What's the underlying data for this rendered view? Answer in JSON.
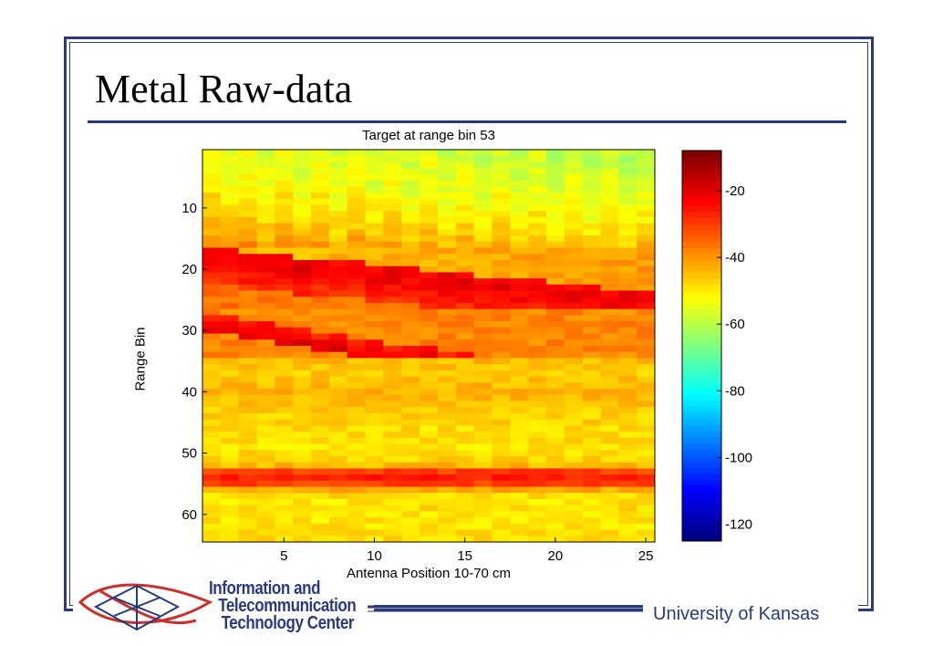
{
  "slide": {
    "title": "Metal Raw-data",
    "university": "University of Kansas",
    "logo_lines": [
      "Information and",
      "Telecommunication",
      "Technology Center"
    ],
    "frame_color": "#2b3a7a"
  },
  "chart_data": {
    "type": "heatmap",
    "title": "Target at range bin 53",
    "xlabel": "Antenna Position 10-70 cm",
    "ylabel": "Range Bin",
    "xlim": [
      0.5,
      25.5
    ],
    "ylim": [
      65,
      1
    ],
    "xticks": [
      5,
      10,
      15,
      20,
      25
    ],
    "yticks": [
      10,
      20,
      30,
      40,
      50,
      60
    ],
    "colorbar": {
      "ticks": [
        -20,
        -40,
        -60,
        -80,
        -100,
        -120
      ],
      "range": [
        -125,
        -8
      ],
      "colormap": "jet"
    },
    "n_cols": 25,
    "n_rows": 64,
    "row_profile_db": [
      -52,
      -52,
      -51,
      -51,
      -50,
      -50,
      -49,
      -48,
      -47,
      -46,
      -45,
      -44,
      -43,
      -42,
      -40,
      -38,
      -22,
      -20,
      -22,
      -24,
      -26,
      -27,
      -30,
      -32,
      -34,
      -36,
      -38,
      -25,
      -22,
      -20,
      -24,
      -32,
      -40,
      -42,
      -44,
      -45,
      -46,
      -45,
      -44,
      -43,
      -44,
      -45,
      -46,
      -47,
      -47,
      -48,
      -48,
      -48,
      -49,
      -48,
      -47,
      -44,
      -30,
      -26,
      -30,
      -42,
      -48,
      -49,
      -48,
      -49,
      -49,
      -49,
      -48,
      -48
    ],
    "notes": "Values in dB; strong reflections near bins 17-21, 28-30 (sloping down with antenna position) and a flat strong return at bin 53."
  }
}
